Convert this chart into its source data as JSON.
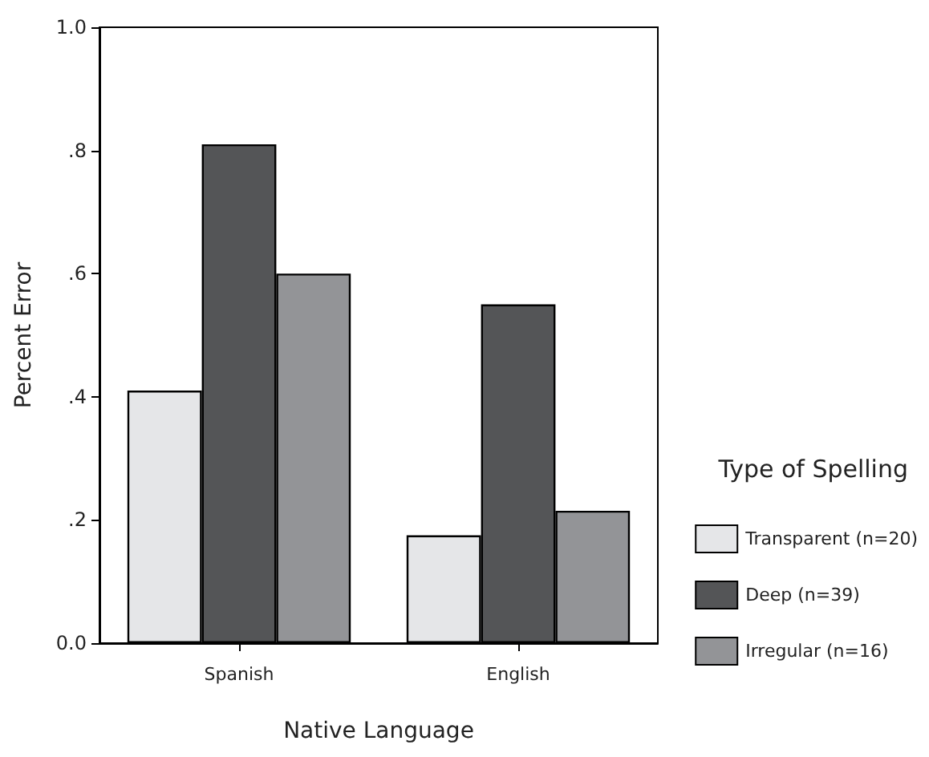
{
  "chart_data": {
    "type": "bar",
    "xlabel": "Native Language",
    "ylabel": "Percent Error",
    "legend_title": "Type of Spelling",
    "categories": [
      "Spanish",
      "English"
    ],
    "series": [
      {
        "name": "Transparent (n=20)",
        "color": "#e5e6e8",
        "values": [
          0.41,
          0.175
        ]
      },
      {
        "name": "Deep (n=39)",
        "color": "#545557",
        "values": [
          0.81,
          0.55
        ]
      },
      {
        "name": "Irregular (n=16)",
        "color": "#939497",
        "values": [
          0.6,
          0.215
        ]
      }
    ],
    "ylim": [
      0,
      1
    ],
    "yticks": [
      {
        "value": 0,
        "label": "0.0"
      },
      {
        "value": 0.2,
        "label": ".2"
      },
      {
        "value": 0.4,
        "label": ".4"
      },
      {
        "value": 0.6,
        "label": ".6"
      },
      {
        "value": 0.8,
        "label": ".8"
      },
      {
        "value": 1,
        "label": "1.0"
      }
    ],
    "grid": false,
    "legend": "right"
  }
}
